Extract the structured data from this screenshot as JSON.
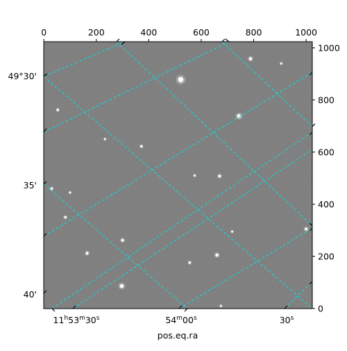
{
  "chart_data": {
    "type": "scatter",
    "title": "",
    "xlabel": "pos.eq.ra",
    "ylabel": "",
    "pixel_axes": {
      "x_range": [
        -0.5,
        1023.5
      ],
      "y_range": [
        -0.5,
        1023.5
      ],
      "x_ticks": [
        0,
        200,
        400,
        600,
        800,
        1000
      ],
      "y_ticks": [
        0,
        200,
        400,
        600,
        800,
        1000
      ]
    },
    "world_axes": {
      "ra_tick_labels": [
        {
          "label": "11",
          "sup": "h",
          "label2": "53",
          "sup2": "m",
          "label3": "30",
          "sup3": "s"
        },
        {
          "label": "",
          "sup": "",
          "label2": "54",
          "sup2": "m",
          "label3": "00",
          "sup3": "s"
        },
        {
          "label": "",
          "sup": "",
          "label2": "",
          "sup2": "",
          "label3": "30",
          "sup3": "s"
        }
      ],
      "dec_tick_labels": [
        "49°30'",
        "35'",
        "40'"
      ]
    },
    "grid": true,
    "grid_color": "#00e5e5",
    "image_background": "#7c7c7c",
    "stars": [
      {
        "x": 522,
        "y": 878,
        "mag": 6
      },
      {
        "x": 788,
        "y": 958,
        "mag": 3
      },
      {
        "x": 744,
        "y": 738,
        "mag": 4
      },
      {
        "x": 53,
        "y": 762,
        "mag": 2
      },
      {
        "x": 372,
        "y": 622,
        "mag": 2
      },
      {
        "x": 233,
        "y": 650,
        "mag": 1.5
      },
      {
        "x": 670,
        "y": 508,
        "mag": 2.5
      },
      {
        "x": 575,
        "y": 510,
        "mag": 1.5
      },
      {
        "x": 30,
        "y": 460,
        "mag": 2
      },
      {
        "x": 100,
        "y": 445,
        "mag": 1.5
      },
      {
        "x": 82,
        "y": 350,
        "mag": 2
      },
      {
        "x": 300,
        "y": 262,
        "mag": 2.5
      },
      {
        "x": 165,
        "y": 212,
        "mag": 2.5
      },
      {
        "x": 660,
        "y": 205,
        "mag": 3
      },
      {
        "x": 556,
        "y": 176,
        "mag": 2
      },
      {
        "x": 297,
        "y": 86,
        "mag": 4
      },
      {
        "x": 1000,
        "y": 305,
        "mag": 2.5
      },
      {
        "x": 718,
        "y": 295,
        "mag": 1.5
      },
      {
        "x": 905,
        "y": 940,
        "mag": 1.5
      },
      {
        "x": 675,
        "y": 10,
        "mag": 1.5
      }
    ]
  }
}
